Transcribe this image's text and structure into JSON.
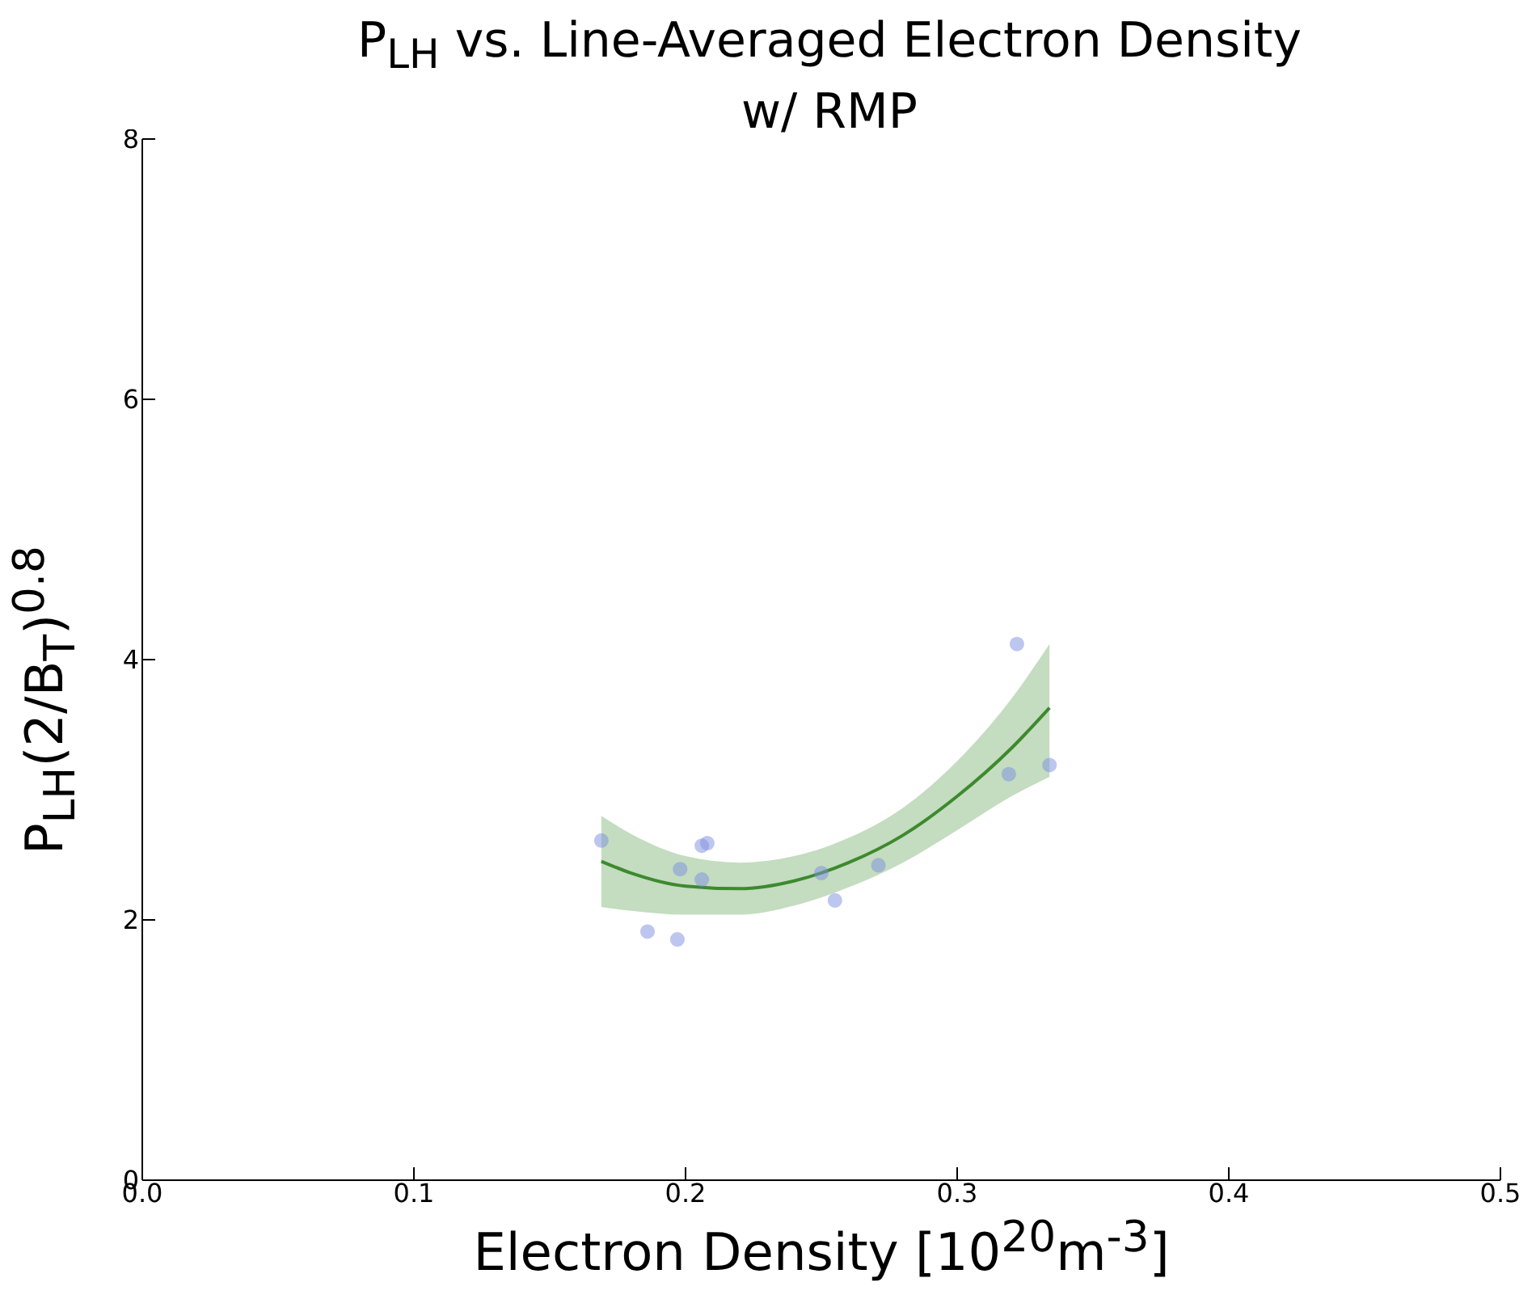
{
  "chart_data": {
    "type": "scatter",
    "title": "P$_{LH}$ vs. Line-Averaged Electron Density\nw/ RMP",
    "xlabel": "Electron Density [10$^{20}$m$^{-3}$]",
    "ylabel": "P$_{LH}$(2/B$_{T}$)$^{0.8}$",
    "xlim": [
      0,
      0.5
    ],
    "xticks": [
      {
        "value": 0,
        "label": "0.0"
      },
      0.1,
      0.2,
      0.3,
      0.4,
      0.5
    ],
    "ylim": [
      0,
      8
    ],
    "yticks": [
      0,
      2,
      4,
      6,
      8
    ],
    "grid": false,
    "legend": false,
    "marker": "circle",
    "series": [
      {
        "color": "#7b8ee0",
        "x": [
          0.169,
          0.186,
          0.198,
          0.197,
          0.206,
          0.208,
          0.206,
          0.25,
          0.255,
          0.271,
          0.319,
          0.322,
          0.334
        ],
        "values": [
          2.61,
          1.91,
          2.39,
          1.85,
          2.57,
          2.59,
          2.31,
          2.36,
          2.15,
          2.42,
          3.12,
          4.12,
          3.19
        ]
      },
      {
        "type": "line",
        "color": "#3d8a2e",
        "line_style": "solid",
        "marker": "none",
        "x": [
          0.169,
          0.18,
          0.2,
          0.22,
          0.24,
          0.26,
          0.28,
          0.3,
          0.32,
          0.334
        ],
        "values": [
          2.45,
          2.36,
          2.26,
          2.24,
          2.3,
          2.44,
          2.65,
          2.95,
          3.32,
          3.63
        ],
        "lower": [
          2.1,
          2.07,
          2.04,
          2.04,
          2.11,
          2.25,
          2.44,
          2.69,
          2.95,
          3.1
        ],
        "upper": [
          2.8,
          2.66,
          2.49,
          2.44,
          2.49,
          2.63,
          2.86,
          3.22,
          3.7,
          4.12
        ]
      }
    ]
  }
}
